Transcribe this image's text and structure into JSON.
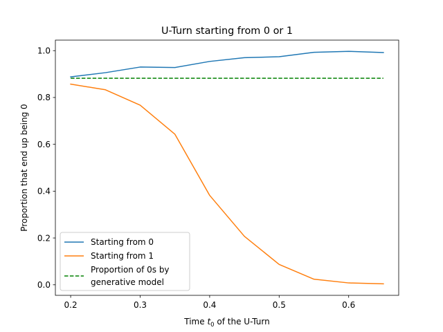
{
  "chart_data": {
    "type": "line",
    "title": "U-Turn starting from 0 or 1",
    "xlabel_prefix": "Time ",
    "xlabel_var": "t",
    "xlabel_sub": "0",
    "xlabel_suffix": " of the U-Turn",
    "ylabel": "Proportion that end up being 0",
    "xlim": [
      0.178,
      0.672
    ],
    "ylim": [
      -0.045,
      1.045
    ],
    "xticks": [
      0.2,
      0.3,
      0.4,
      0.5,
      0.6
    ],
    "xtick_labels": [
      "0.2",
      "0.3",
      "0.4",
      "0.5",
      "0.6"
    ],
    "yticks": [
      0.0,
      0.2,
      0.4,
      0.6,
      0.8,
      1.0
    ],
    "ytick_labels": [
      "0.0",
      "0.2",
      "0.4",
      "0.6",
      "0.8",
      "1.0"
    ],
    "grid": false,
    "legend_position": "lower-left",
    "x": [
      0.2,
      0.25,
      0.3,
      0.35,
      0.4,
      0.45,
      0.5,
      0.55,
      0.6,
      0.65
    ],
    "series": [
      {
        "name": "Starting from 0",
        "color": "#1f77b4",
        "style": "solid",
        "values": [
          0.888,
          0.906,
          0.93,
          0.928,
          0.954,
          0.97,
          0.974,
          0.993,
          0.997,
          0.992
        ]
      },
      {
        "name": "Starting from 1",
        "color": "#ff7f0e",
        "style": "solid",
        "values": [
          0.857,
          0.833,
          0.767,
          0.643,
          0.382,
          0.207,
          0.087,
          0.024,
          0.008,
          0.004
        ]
      }
    ],
    "reference_line": {
      "legend_lines": [
        "Proportion of 0s by",
        "generative model"
      ],
      "color": "#008000",
      "style": "dashed",
      "y": 0.882
    }
  }
}
